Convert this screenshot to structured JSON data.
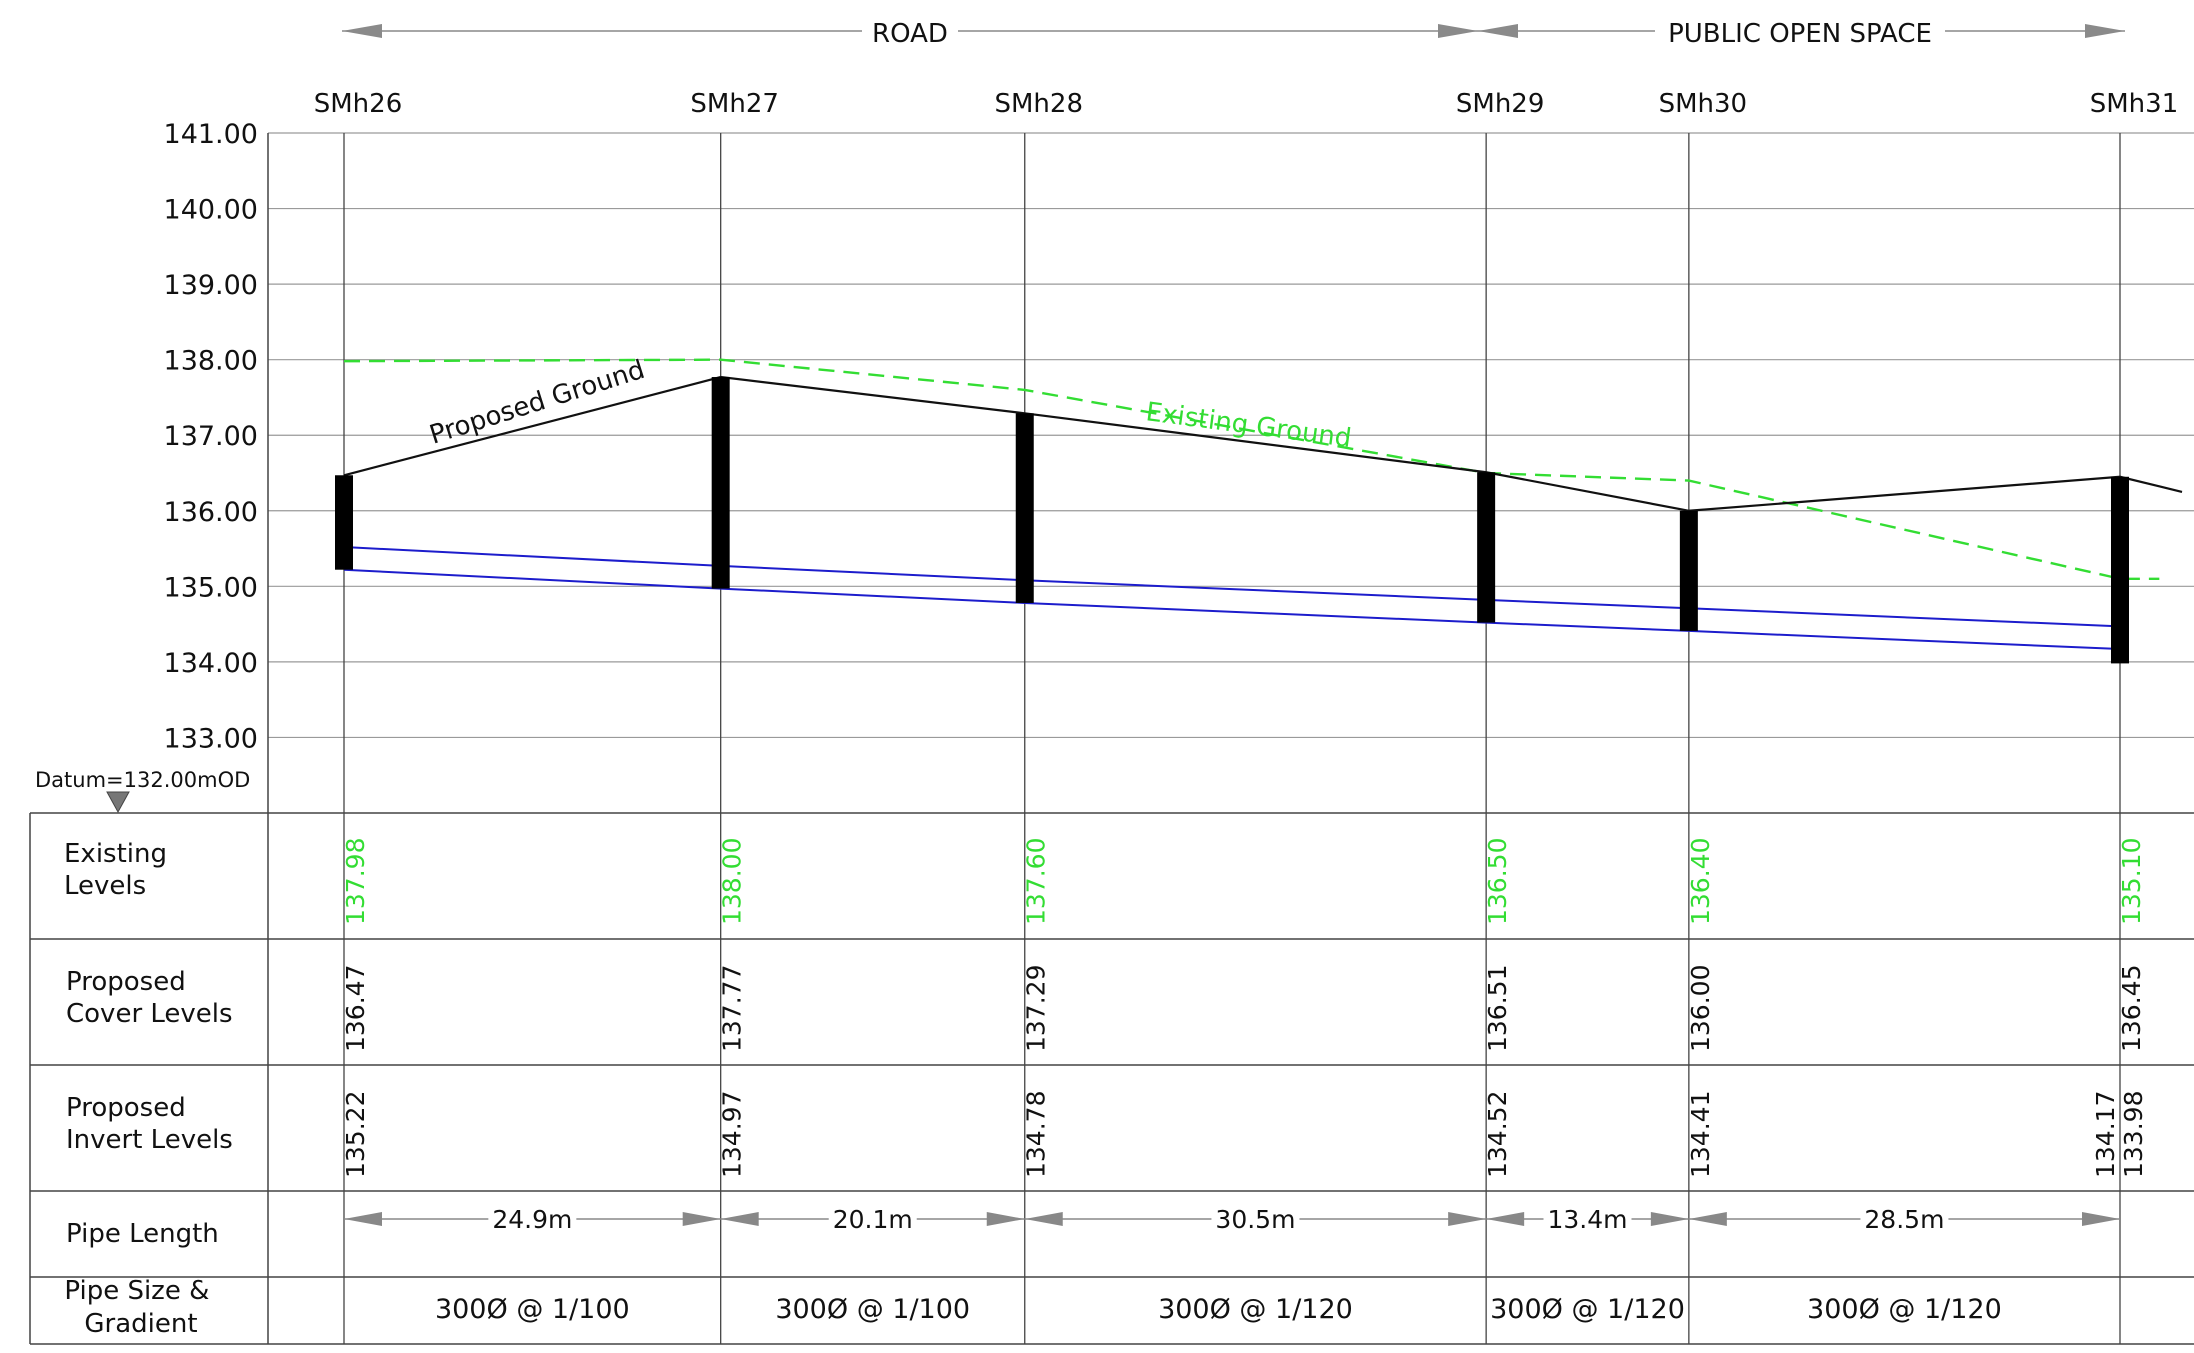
{
  "zones": [
    {
      "label": "ROAD"
    },
    {
      "label": "PUBLIC OPEN SPACE"
    }
  ],
  "datum_label": "Datum=132.00mOD",
  "row_labels": {
    "existing": [
      "Existing",
      "Levels"
    ],
    "cover": [
      "Proposed",
      "Cover Levels"
    ],
    "invert": [
      "Proposed",
      "Invert Levels"
    ],
    "pipe_length": [
      "Pipe Length"
    ],
    "pipe_size": [
      "Pipe Size &",
      "Gradient"
    ]
  },
  "annotations": {
    "proposed_ground": "Proposed Ground",
    "existing_ground": "Existing Ground"
  },
  "colors": {
    "existing": "#33dd33",
    "pipe": "#1c1ccc",
    "ink": "#111111",
    "grid": "#9a9a9a"
  },
  "chart_data": {
    "type": "line",
    "ylim": [
      132.0,
      141.0
    ],
    "y_ticks": [
      "141.00",
      "140.00",
      "139.00",
      "138.00",
      "137.00",
      "136.00",
      "135.00",
      "134.00",
      "133.00"
    ],
    "chainage_units": "m",
    "manholes": [
      {
        "name": "SMh26",
        "chainage": 0.0,
        "existing": "137.98",
        "cover": "136.47",
        "inverts": [
          "135.22"
        ]
      },
      {
        "name": "SMh27",
        "chainage": 24.9,
        "existing": "138.00",
        "cover": "137.77",
        "inverts": [
          "134.97"
        ]
      },
      {
        "name": "SMh28",
        "chainage": 45.0,
        "existing": "137.60",
        "cover": "137.29",
        "inverts": [
          "134.78"
        ]
      },
      {
        "name": "SMh29",
        "chainage": 75.5,
        "existing": "136.50",
        "cover": "136.51",
        "inverts": [
          "134.52"
        ]
      },
      {
        "name": "SMh30",
        "chainage": 88.9,
        "existing": "136.40",
        "cover": "136.00",
        "inverts": [
          "134.41"
        ]
      },
      {
        "name": "SMh31",
        "chainage": 117.4,
        "existing": "135.10",
        "cover": "136.45",
        "inverts": [
          "134.17",
          "133.98"
        ]
      }
    ],
    "pipes": [
      {
        "length": "24.9m",
        "size": "300Ø @ 1/100",
        "invert_start": 135.22,
        "invert_end": 134.97
      },
      {
        "length": "20.1m",
        "size": "300Ø @ 1/100",
        "invert_start": 134.97,
        "invert_end": 134.78
      },
      {
        "length": "30.5m",
        "size": "300Ø @ 1/120",
        "invert_start": 134.78,
        "invert_end": 134.52
      },
      {
        "length": "13.4m",
        "size": "300Ø @ 1/120",
        "invert_start": 134.52,
        "invert_end": 134.41
      },
      {
        "length": "28.5m",
        "size": "300Ø @ 1/120",
        "invert_start": 134.41,
        "invert_end": 134.17
      }
    ],
    "pipe_diameter_m": 0.3,
    "existing_ground_beyond": {
      "chainage": 120.0,
      "level": 135.1
    },
    "proposed_ground_beyond": {
      "chainage": 121.5,
      "level": 136.25
    }
  }
}
